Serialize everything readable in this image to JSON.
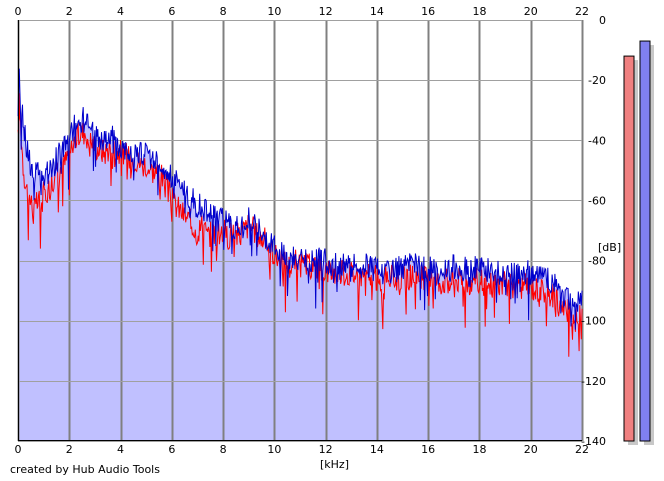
{
  "app": {
    "credit": "created by Hub Audio Tools"
  },
  "chart_data": {
    "type": "area",
    "title": "",
    "xlabel": "[kHz]",
    "ylabel": "[dB]",
    "xlim": [
      0,
      22
    ],
    "ylim": [
      -140,
      0
    ],
    "x_ticks": [
      "0",
      "2",
      "4",
      "6",
      "8",
      "10",
      "12",
      "14",
      "16",
      "18",
      "20",
      "22"
    ],
    "y_ticks": [
      "0",
      "-20",
      "-40",
      "-60",
      "-80",
      "-100",
      "-120",
      "-140"
    ],
    "grid": true,
    "colors": {
      "fill": "#c0c0ff",
      "channel_1": "#ff0000",
      "channel_2": "#0000cc",
      "grid": "#a0a0a0",
      "major_grid": "#808080",
      "level_meter_1": "#f08080",
      "level_meter_2": "#8080f0"
    },
    "series": [
      {
        "x": [
          0,
          0.05,
          0.1,
          0.2,
          0.3,
          0.4,
          0.5,
          0.6,
          0.7,
          0.8,
          0.9,
          1.0,
          1.2,
          1.4,
          1.6,
          1.8,
          2.0,
          2.2,
          2.4,
          2.6,
          2.8,
          3.0,
          3.2,
          3.4,
          3.6,
          3.8,
          4.0,
          4.2,
          4.4,
          4.6,
          4.8,
          5.0,
          5.2,
          5.4,
          5.6,
          5.8,
          6.0,
          6.2,
          6.4,
          6.6,
          6.8,
          7.0,
          7.2,
          7.4,
          7.6,
          7.8,
          8.0,
          8.2,
          8.4,
          8.6,
          8.8,
          9.0,
          9.2,
          9.4,
          9.6,
          9.8,
          10.0,
          10.2,
          10.4,
          10.6,
          10.8,
          11.0,
          11.5,
          12.0,
          12.5,
          13.0,
          13.5,
          14.0,
          14.2,
          14.4,
          14.6,
          15.0,
          15.5,
          16.0,
          16.5,
          17.0,
          17.5,
          18.0,
          18.5,
          19.0,
          19.5,
          20.0,
          20.5,
          21.0,
          21.2,
          21.4,
          21.6,
          21.8,
          22.0
        ],
        "values": [
          -40,
          -28,
          -35,
          -48,
          -55,
          -58,
          -60,
          -64,
          -62,
          -60,
          -62,
          -58,
          -56,
          -52,
          -50,
          -48,
          -44,
          -40,
          -38,
          -37,
          -40,
          -42,
          -43,
          -44,
          -42,
          -43,
          -44,
          -45,
          -46,
          -46,
          -48,
          -48,
          -50,
          -50,
          -52,
          -56,
          -60,
          -62,
          -64,
          -66,
          -68,
          -70,
          -68,
          -72,
          -70,
          -72,
          -70,
          -72,
          -70,
          -72,
          -70,
          -68,
          -70,
          -72,
          -73,
          -75,
          -78,
          -80,
          -80,
          -82,
          -80,
          -82,
          -82,
          -83,
          -84,
          -84,
          -85,
          -86,
          -92,
          -84,
          -86,
          -86,
          -85,
          -86,
          -87,
          -86,
          -87,
          -87,
          -88,
          -88,
          -88,
          -89,
          -90,
          -92,
          -96,
          -97,
          -98,
          -100,
          -96
        ]
      },
      {
        "x": [
          0,
          0.05,
          0.1,
          0.2,
          0.3,
          0.4,
          0.5,
          0.6,
          0.7,
          0.8,
          0.9,
          1.0,
          1.2,
          1.4,
          1.6,
          1.8,
          2.0,
          2.2,
          2.4,
          2.6,
          2.8,
          3.0,
          3.2,
          3.4,
          3.6,
          3.8,
          4.0,
          4.2,
          4.4,
          4.6,
          4.8,
          5.0,
          5.2,
          5.4,
          5.6,
          5.8,
          6.0,
          6.2,
          6.4,
          6.6,
          6.8,
          7.0,
          7.2,
          7.4,
          7.6,
          7.8,
          8.0,
          8.2,
          8.4,
          8.6,
          8.8,
          9.0,
          9.2,
          9.4,
          9.6,
          9.8,
          10.0,
          10.2,
          10.4,
          10.6,
          10.8,
          11.0,
          11.5,
          12.0,
          12.5,
          13.0,
          13.5,
          14.0,
          14.2,
          14.4,
          14.6,
          15.0,
          15.5,
          16.0,
          16.5,
          17.0,
          17.5,
          18.0,
          18.5,
          19.0,
          19.5,
          20.0,
          20.5,
          21.0,
          21.2,
          21.4,
          21.6,
          21.8,
          22.0
        ],
        "values": [
          -35,
          -20,
          -28,
          -32,
          -40,
          -45,
          -48,
          -52,
          -50,
          -52,
          -55,
          -52,
          -50,
          -48,
          -45,
          -42,
          -40,
          -35,
          -32,
          -34,
          -36,
          -38,
          -40,
          -40,
          -39,
          -40,
          -42,
          -42,
          -44,
          -44,
          -45,
          -44,
          -46,
          -45,
          -47,
          -50,
          -52,
          -54,
          -55,
          -58,
          -60,
          -62,
          -62,
          -64,
          -65,
          -66,
          -66,
          -68,
          -68,
          -69,
          -68,
          -66,
          -68,
          -70,
          -72,
          -74,
          -76,
          -78,
          -78,
          -80,
          -79,
          -80,
          -80,
          -80,
          -82,
          -82,
          -82,
          -82,
          -84,
          -83,
          -83,
          -82,
          -82,
          -83,
          -84,
          -82,
          -83,
          -83,
          -84,
          -84,
          -84,
          -84,
          -86,
          -88,
          -90,
          -92,
          -94,
          -94,
          -90
        ]
      }
    ],
    "level_meters": [
      -12,
      -7
    ]
  }
}
